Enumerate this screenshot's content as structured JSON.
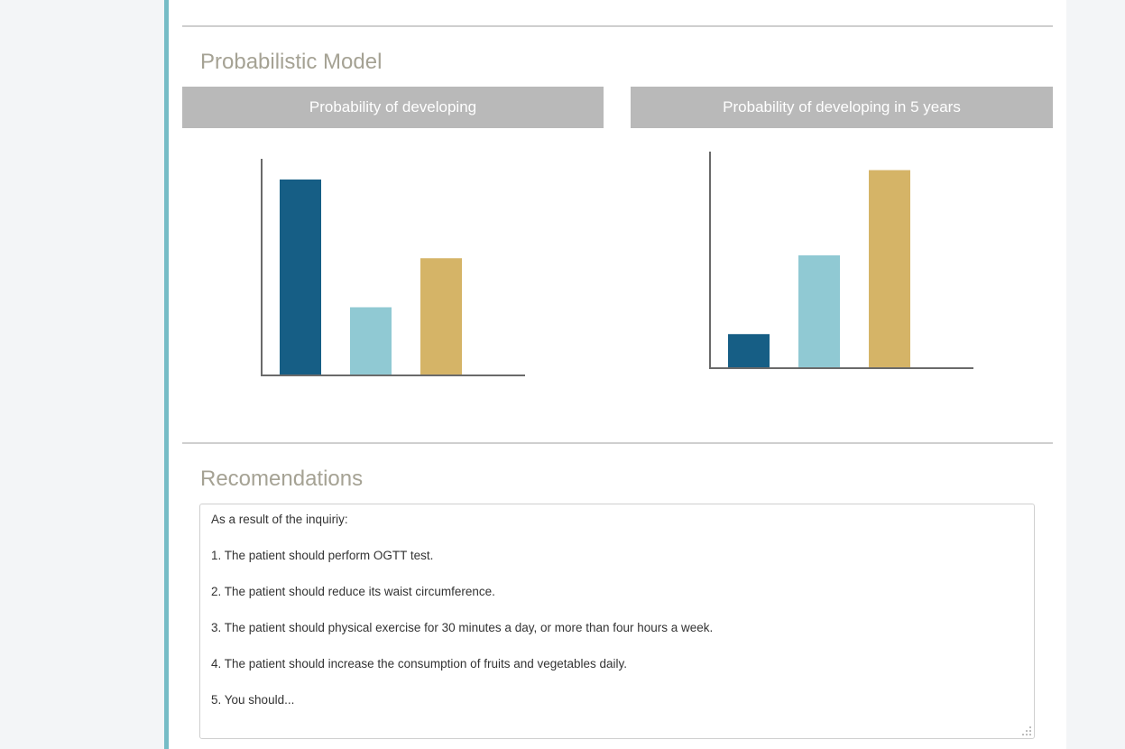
{
  "probabilistic_model": {
    "title": "Probabilistic Model"
  },
  "charts": [
    {
      "header": "Probability of developing"
    },
    {
      "header": "Probability of developing in 5 years"
    }
  ],
  "chart_data": [
    {
      "type": "bar",
      "title": "Probability of developing",
      "categories": [
        "",
        "",
        ""
      ],
      "values": [
        0.92,
        0.32,
        0.55
      ],
      "colors": [
        "#165e85",
        "#90c9d3",
        "#d5b467"
      ],
      "ylim": [
        0,
        1
      ],
      "grid": false
    },
    {
      "type": "bar",
      "title": "Probability of developing in 5 years",
      "categories": [
        "",
        "",
        ""
      ],
      "values": [
        0.16,
        0.53,
        0.93
      ],
      "colors": [
        "#165e85",
        "#90c9d3",
        "#d5b467"
      ],
      "ylim": [
        0,
        1
      ],
      "grid": false
    }
  ],
  "recommendations": {
    "title": "Recomendations",
    "lines": [
      "As a result of the inquiriy:",
      "",
      "1. The patient should perform OGTT test.",
      "",
      "2. The patient should reduce its waist circumference.",
      "",
      "3. The patient should physical exercise for 30 minutes a day, or more than four hours a week.",
      "",
      "4. The patient should increase the consumption of fruits and vegetables daily.",
      "",
      "5. You should..."
    ]
  }
}
